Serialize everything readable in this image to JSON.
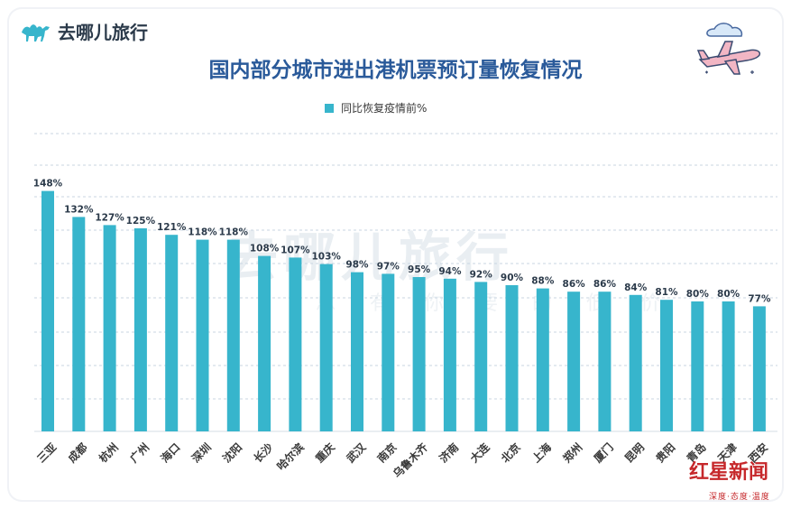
{
  "header": {
    "logo_text": "去哪儿旅行",
    "title": "国内部分城市进出港机票预订量恢复情况"
  },
  "watermark": {
    "main": "去哪儿旅行",
    "sub": "总有你要的低价"
  },
  "stamp": {
    "main": "红星新闻",
    "sub": "深度·态度·温度"
  },
  "chart_data": {
    "type": "bar",
    "title": "国内部分城市进出港机票预订量恢复情况",
    "categories": [
      "三亚",
      "成都",
      "杭州",
      "广州",
      "海口",
      "深圳",
      "沈阳",
      "长沙",
      "哈尔滨",
      "重庆",
      "武汉",
      "南京",
      "乌鲁木齐",
      "济南",
      "大连",
      "北京",
      "上海",
      "郑州",
      "厦门",
      "昆明",
      "贵阳",
      "青岛",
      "天津",
      "西安"
    ],
    "series": [
      {
        "name": "同比恢复疫情前%",
        "values": [
          148,
          132,
          127,
          125,
          121,
          118,
          118,
          108,
          107,
          103,
          98,
          97,
          95,
          94,
          92,
          90,
          88,
          86,
          86,
          84,
          81,
          80,
          80,
          77
        ],
        "labels": [
          "148%",
          "132%",
          "127%",
          "125%",
          "121%",
          "118%",
          "118%",
          "108%",
          "107%",
          "103%",
          "98%",
          "97%",
          "95%",
          "94%",
          "92%",
          "90%",
          "88%",
          "86%",
          "86%",
          "84%",
          "81%",
          "80%",
          "80%",
          "77%"
        ]
      }
    ],
    "ylim": [
      0,
      160
    ],
    "grid": true,
    "legend_position": "top-center",
    "colors": {
      "bar": "#37b5cc",
      "label": "#2b3a4a",
      "grid": "#c9d6e2"
    }
  }
}
